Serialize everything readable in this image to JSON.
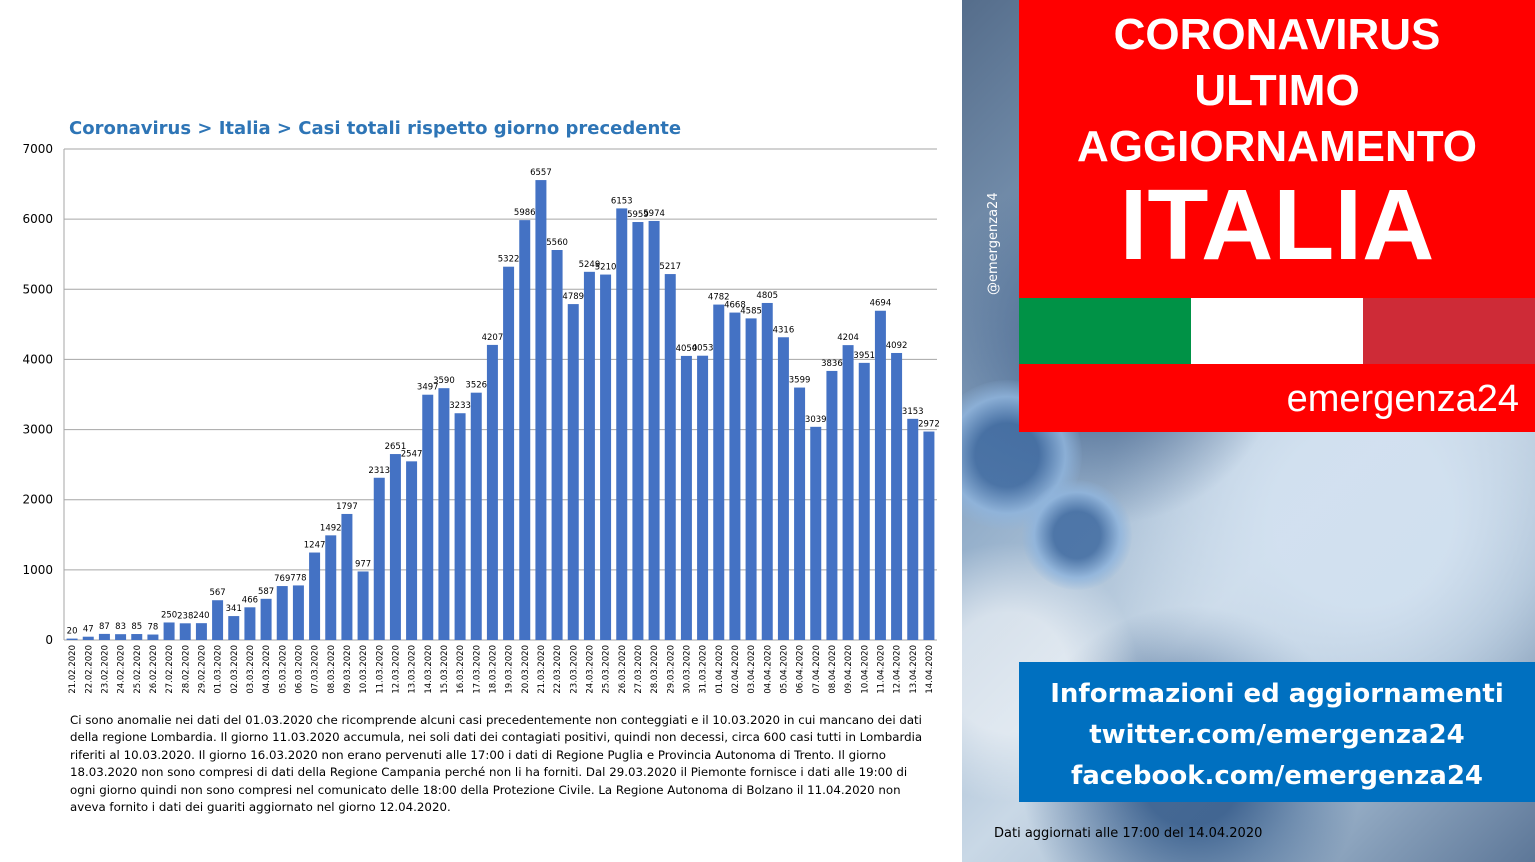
{
  "chart_data": {
    "type": "bar",
    "title": "Coronavirus > Italia > Casi totali rispetto giorno precedente",
    "xlabel": "",
    "ylabel": "",
    "ylim": [
      0,
      7000
    ],
    "yticks": [
      0,
      1000,
      2000,
      3000,
      4000,
      5000,
      6000,
      7000
    ],
    "grid": true,
    "legend": "none",
    "bar_color": "#4472c4",
    "categories": [
      "21.02.2020",
      "22.02.2020",
      "23.02.2020",
      "24.02.2020",
      "25.02.2020",
      "26.02.2020",
      "27.02.2020",
      "28.02.2020",
      "29.02.2020",
      "01.03.2020",
      "02.03.2020",
      "03.03.2020",
      "04.03.2020",
      "05.03.2020",
      "06.03.2020",
      "07.03.2020",
      "08.03.2020",
      "09.03.2020",
      "10.03.2020",
      "11.03.2020",
      "12.03.2020",
      "13.03.2020",
      "14.03.2020",
      "15.03.2020",
      "16.03.2020",
      "17.03.2020",
      "18.03.2020",
      "19.03.2020",
      "20.03.2020",
      "21.03.2020",
      "22.03.2020",
      "23.03.2020",
      "24.03.2020",
      "25.03.2020",
      "26.03.2020",
      "27.03.2020",
      "28.03.2020",
      "29.03.2020",
      "30.03.2020",
      "31.03.2020",
      "01.04.2020",
      "02.04.2020",
      "03.04.2020",
      "04.04.2020",
      "05.04.2020",
      "06.04.2020",
      "07.04.2020",
      "08.04.2020",
      "09.04.2020",
      "10.04.2020",
      "11.04.2020",
      "12.04.2020",
      "13.04.2020",
      "14.04.2020"
    ],
    "values": [
      20,
      47,
      87,
      83,
      85,
      78,
      250,
      238,
      240,
      567,
      341,
      466,
      587,
      769,
      778,
      1247,
      1492,
      1797,
      977,
      2313,
      2651,
      2547,
      3497,
      3590,
      3233,
      3526,
      4207,
      5322,
      5986,
      6557,
      5560,
      4789,
      5249,
      5210,
      6153,
      5959,
      5974,
      5217,
      4050,
      4053,
      4782,
      4668,
      4585,
      4805,
      4316,
      3599,
      3039,
      3836,
      4204,
      3951,
      4694,
      4092,
      3153,
      2972
    ]
  },
  "footnote": {
    "lines": [
      "Ci sono anomalie nei dati del 01.03.2020  che ricomprende alcuni casi precedentemente non conteggiati e il 10.03.2020  in cui mancano dei dati",
      "della regione Lombardia. Il giorno 11.03.2020   accumula,  nei soli dati dei contagiati positivi, quindi non decessi, circa 600  casi tutti in Lombardia",
      "riferiti al 10.03.2020.  Il giorno 16.03.2020  non erano pervenuti alle 17:00  i dati di Regione Puglia e Provincia Autonoma di Trento. Il giorno",
      "18.03.2020  non sono compresi di dati della Regione Campania perché non li ha forniti. Dal 29.03.2020  il Piemonte fornisce i dati alle 19:00  di",
      "ogni giorno quindi non sono compresi nel comunicato  delle 18:00  della Protezione Civile. La Regione Autonoma di Bolzano il 11.04.2020  non",
      "aveva fornito i dati dei guariti aggiornato  nel giorno 12.04.2020."
    ]
  },
  "banner": {
    "line1": "CORONAVIRUS",
    "line2": "ULTIMO",
    "line3": "AGGIORNAMENTO",
    "country": "ITALIA",
    "brand": "emergenza24",
    "handle": "@emergenza24",
    "flag_colors": [
      "#009246",
      "#ffffff",
      "#ce2b37"
    ]
  },
  "info": {
    "line1": "Informazioni ed aggiornamenti",
    "line2": "twitter.com/emergenza24",
    "line3": "facebook.com/emergenza24"
  },
  "updated_note": "Dati aggiornati alle 17:00 del 14.04.2020"
}
